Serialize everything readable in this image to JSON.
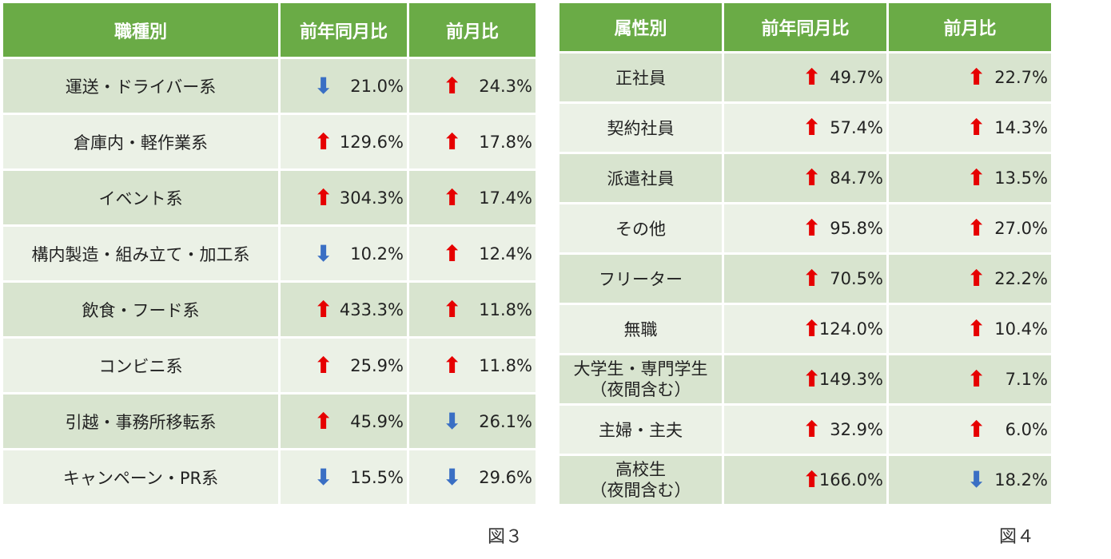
{
  "table3": {
    "headers": [
      "職種別",
      "前年同月比",
      "前月比"
    ],
    "rows": [
      {
        "category": "運送・ドライバー系",
        "yoy": "21.0%",
        "yoy_dir": "down",
        "mom": "24.3%",
        "mom_dir": "up"
      },
      {
        "category": "倉庫内・軽作業系",
        "yoy": "129.6%",
        "yoy_dir": "up",
        "mom": "17.8%",
        "mom_dir": "up"
      },
      {
        "category": "イベント系",
        "yoy": "304.3%",
        "yoy_dir": "up",
        "mom": "17.4%",
        "mom_dir": "up"
      },
      {
        "category": "構内製造・組み立て・加工系",
        "yoy": "10.2%",
        "yoy_dir": "down",
        "mom": "12.4%",
        "mom_dir": "up"
      },
      {
        "category": "飲食・フード系",
        "yoy": "433.3%",
        "yoy_dir": "up",
        "mom": "11.8%",
        "mom_dir": "up"
      },
      {
        "category": "コンビニ系",
        "yoy": "25.9%",
        "yoy_dir": "up",
        "mom": "11.8%",
        "mom_dir": "up"
      },
      {
        "category": "引越・事務所移転系",
        "yoy": "45.9%",
        "yoy_dir": "up",
        "mom": "26.1%",
        "mom_dir": "down"
      },
      {
        "category": "キャンペーン・PR系",
        "yoy": "15.5%",
        "yoy_dir": "down",
        "mom": "29.6%",
        "mom_dir": "down"
      }
    ],
    "caption": "図３"
  },
  "table4": {
    "headers": [
      "属性別",
      "前年同月比",
      "前月比"
    ],
    "rows": [
      {
        "category": "正社員",
        "yoy": "49.7%",
        "yoy_dir": "up",
        "mom": "22.7%",
        "mom_dir": "up"
      },
      {
        "category": "契約社員",
        "yoy": "57.4%",
        "yoy_dir": "up",
        "mom": "14.3%",
        "mom_dir": "up"
      },
      {
        "category": "派遣社員",
        "yoy": "84.7%",
        "yoy_dir": "up",
        "mom": "13.5%",
        "mom_dir": "up"
      },
      {
        "category": "その他",
        "yoy": "95.8%",
        "yoy_dir": "up",
        "mom": "27.0%",
        "mom_dir": "up"
      },
      {
        "category": "フリーター",
        "yoy": "70.5%",
        "yoy_dir": "up",
        "mom": "22.2%",
        "mom_dir": "up"
      },
      {
        "category": "無職",
        "yoy": "124.0%",
        "yoy_dir": "up",
        "mom": "10.4%",
        "mom_dir": "up"
      },
      {
        "category": "大学生・専門学生\n（夜間含む）",
        "yoy": "149.3%",
        "yoy_dir": "up",
        "mom": "7.1%",
        "mom_dir": "up"
      },
      {
        "category": "主婦・主夫",
        "yoy": "32.9%",
        "yoy_dir": "up",
        "mom": "6.0%",
        "mom_dir": "up"
      },
      {
        "category": "高校生\n（夜間含む）",
        "yoy": "166.0%",
        "yoy_dir": "up",
        "mom": "18.2%",
        "mom_dir": "down"
      }
    ],
    "caption": "図４"
  },
  "icons": {
    "up": "red-up-arrow-icon",
    "down": "blue-down-arrow-icon"
  },
  "colors": {
    "header": "#6aab46",
    "row_dark": "#d8e4cf",
    "row_light": "#ebf1e6",
    "up": "#e60000",
    "down": "#3a6fc4"
  }
}
